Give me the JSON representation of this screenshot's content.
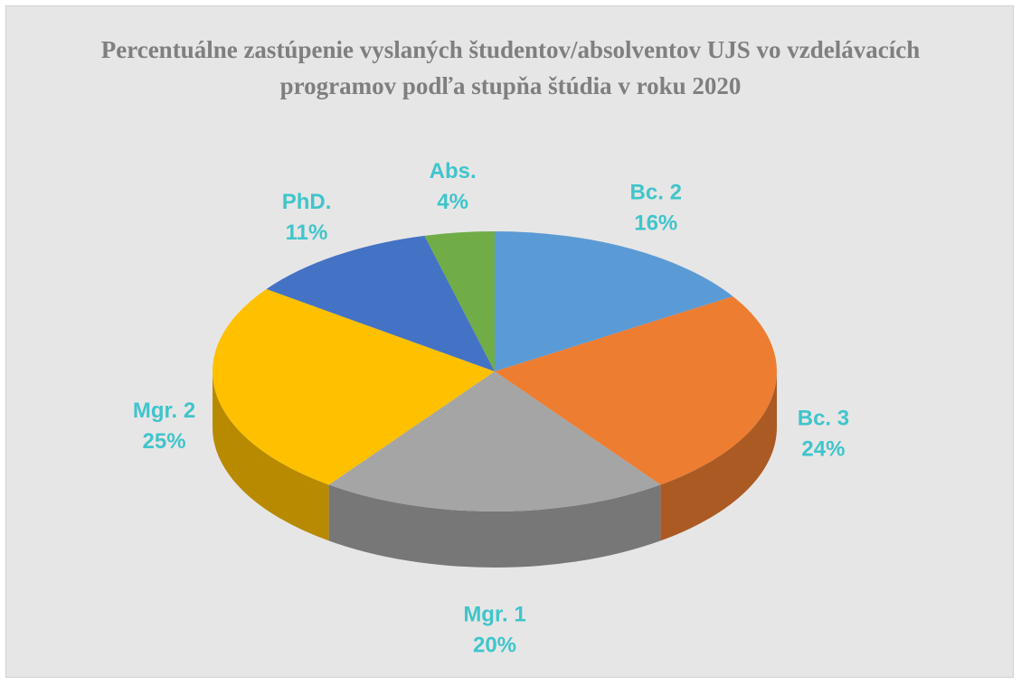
{
  "chart_data": {
    "type": "pie",
    "title": "Percentuálne zastúpenie vyslaných študentov/absolventov UJS vo vzdelávacích programov podľa stupňa štúdia v roku 2020",
    "categories": [
      "Bc. 2",
      "Bc. 3",
      "Mgr. 1",
      "Mgr. 2",
      "PhD.",
      "Abs."
    ],
    "values": [
      16,
      24,
      20,
      25,
      11,
      4
    ],
    "value_labels": [
      "16%",
      "24%",
      "20%",
      "25%",
      "11%",
      "4%"
    ],
    "colors": [
      "#5b9bd5",
      "#ed7d31",
      "#a5a5a5",
      "#ffc000",
      "#4472c4",
      "#70ad47"
    ]
  }
}
